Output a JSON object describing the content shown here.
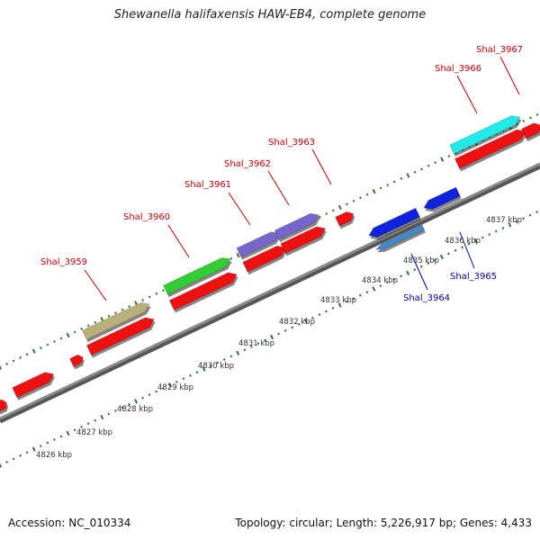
{
  "title": "Shewanella halifaxensis HAW-EB4, complete genome",
  "footer": {
    "accession": "Accession: NC_010334",
    "summary": "Topology: circular; Length: 5,226,917 bp; Genes: 4,433"
  },
  "colors": {
    "backbone": "#8a8a8a",
    "tick": "#2a7a2a",
    "kbp_label": "#333333",
    "gene_label_red": "#cc0000",
    "gene_label_blue": "#0000bb",
    "red": "#ee1111",
    "olive": "#b8b078",
    "green": "#33cc33",
    "purple": "#7766cc",
    "cyan": "#22e8e8",
    "blue": "#1122dd",
    "steel": "#4488cc"
  },
  "kbp_labels": [
    "4826 kbp",
    "4827 kbp",
    "4828 kbp",
    "4829 kbp",
    "4830 kbp",
    "4831 kbp",
    "4832 kbp",
    "4833 kbp",
    "4834 kbp",
    "4835 kbp",
    "4836 kbp",
    "4837 kbp"
  ],
  "gene_labels": [
    {
      "text": "Shal_3959",
      "color": "red"
    },
    {
      "text": "Shal_3960",
      "color": "red"
    },
    {
      "text": "Shal_3961",
      "color": "red"
    },
    {
      "text": "Shal_3962",
      "color": "red"
    },
    {
      "text": "Shal_3963",
      "color": "red"
    },
    {
      "text": "Shal_3964",
      "color": "blue"
    },
    {
      "text": "Shal_3965",
      "color": "blue"
    },
    {
      "text": "Shal_3966",
      "color": "red"
    },
    {
      "text": "Shal_3967",
      "color": "red"
    }
  ]
}
